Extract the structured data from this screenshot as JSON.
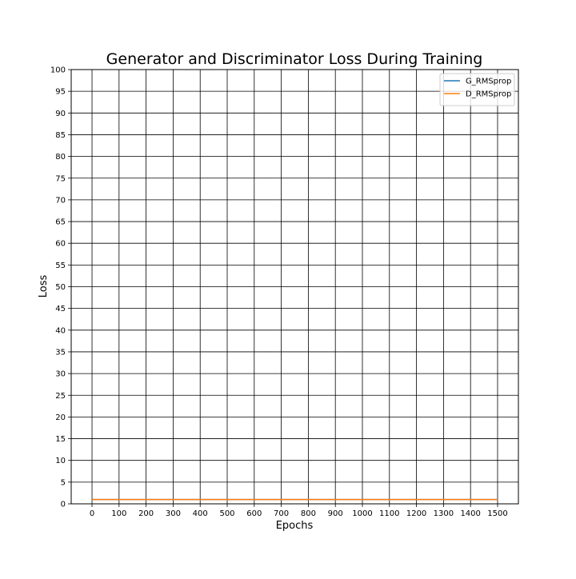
{
  "chart_data": {
    "type": "line",
    "title": "Generator and Discriminator Loss During Training",
    "xlabel": "Epochs",
    "ylabel": "Loss",
    "xlim": [
      -77,
      1577
    ],
    "ylim": [
      0,
      100
    ],
    "xticks": [
      0,
      100,
      200,
      300,
      400,
      500,
      600,
      700,
      800,
      900,
      1000,
      1100,
      1200,
      1300,
      1400,
      1500
    ],
    "yticks": [
      0,
      5,
      10,
      15,
      20,
      25,
      30,
      35,
      40,
      45,
      50,
      55,
      60,
      65,
      70,
      75,
      80,
      85,
      90,
      95,
      100
    ],
    "grid": true,
    "legend_position": "top-right",
    "series": [
      {
        "name": "G_RMSprop",
        "color": "#1f77b4",
        "x": [
          0,
          1500
        ],
        "y": [
          1.0,
          1.0
        ]
      },
      {
        "name": "D_RMSprop",
        "color": "#ff7f0e",
        "x": [
          0,
          1500
        ],
        "y": [
          1.0,
          1.0
        ]
      }
    ]
  }
}
